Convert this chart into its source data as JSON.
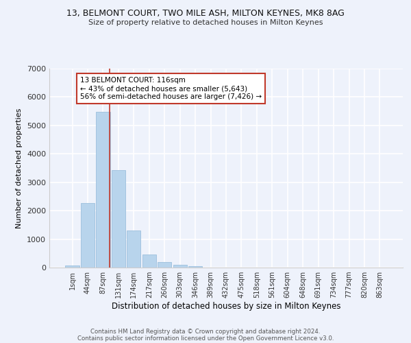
{
  "title_line1": "13, BELMONT COURT, TWO MILE ASH, MILTON KEYNES, MK8 8AG",
  "title_line2": "Size of property relative to detached houses in Milton Keynes",
  "xlabel": "Distribution of detached houses by size in Milton Keynes",
  "ylabel": "Number of detached properties",
  "bar_color": "#b8d4ec",
  "bar_edge_color": "#90b8d8",
  "vline_color": "#c0392b",
  "vline_x": 2.43,
  "annotation_text_line1": "13 BELMONT COURT: 116sqm",
  "annotation_text_line2": "← 43% of detached houses are smaller (5,643)",
  "annotation_text_line3": "56% of semi-detached houses are larger (7,426) →",
  "categories": [
    "1sqm",
    "44sqm",
    "87sqm",
    "131sqm",
    "174sqm",
    "217sqm",
    "260sqm",
    "303sqm",
    "346sqm",
    "389sqm",
    "432sqm",
    "475sqm",
    "518sqm",
    "561sqm",
    "604sqm",
    "648sqm",
    "691sqm",
    "734sqm",
    "777sqm",
    "820sqm",
    "863sqm"
  ],
  "values": [
    80,
    2270,
    5480,
    3420,
    1300,
    470,
    200,
    90,
    50,
    0,
    0,
    0,
    0,
    0,
    0,
    0,
    0,
    0,
    0,
    0,
    0
  ],
  "ylim": [
    0,
    7000
  ],
  "yticks": [
    0,
    1000,
    2000,
    3000,
    4000,
    5000,
    6000,
    7000
  ],
  "footer_line1": "Contains HM Land Registry data © Crown copyright and database right 2024.",
  "footer_line2": "Contains public sector information licensed under the Open Government Licence v3.0.",
  "background_color": "#eef2fb",
  "grid_color": "#ffffff"
}
